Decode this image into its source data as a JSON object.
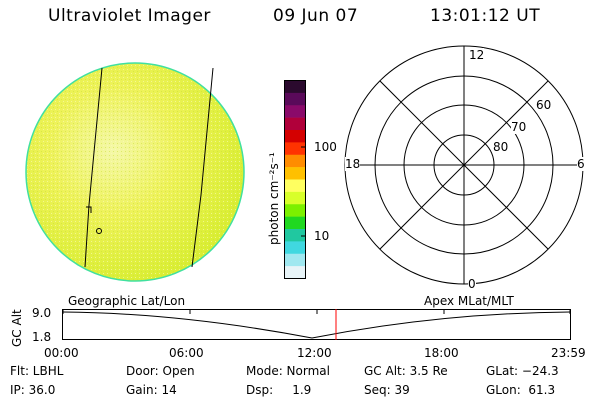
{
  "header": {
    "title": "Ultraviolet Imager",
    "date": "09 Jun 07",
    "time": "13:01:12 UT"
  },
  "colorbar": {
    "unit_label": "photon cm⁻²s⁻¹",
    "tick_100": "100",
    "tick_10": "10",
    "colors": [
      "#2b0a2e",
      "#5a0a5a",
      "#8a0a6a",
      "#b0003a",
      "#d40000",
      "#ff3300",
      "#ff8c00",
      "#ffc000",
      "#ffff60",
      "#d8ff2a",
      "#7cf000",
      "#20d820",
      "#20c8a0",
      "#40d8e0",
      "#a0e8f0",
      "#e8f4f8"
    ]
  },
  "polar_plot": {
    "mlt_12": "12",
    "mlt_18": "18",
    "mlt_6": "6",
    "mlt_0": "0",
    "lat_60": "60",
    "lat_70": "70",
    "lat_80": "80"
  },
  "timeline": {
    "left_label": "Geographic Lat/Lon",
    "right_label": "Apex MLat/MLT",
    "y_axis_label": "GC Alt",
    "y_top": "9.0",
    "y_bottom": "1.8",
    "x_ticks": [
      "00:00",
      "06:00",
      "12:00",
      "18:00",
      "23:59"
    ],
    "current_time_color": "#ff0000"
  },
  "status": {
    "filter": "Flt: LBHL",
    "ip": "IP: 36.0",
    "door": "Door: Open",
    "gain": "Gain: 14",
    "mode": "Mode: Normal",
    "dsp": "Dsp:     1.9",
    "gc_alt": "GC Alt: 3.5 Re",
    "seq": "Seq: 39",
    "glat": "GLat: −24.3",
    "glon": "GLon:  61.3"
  },
  "earth_image": {
    "fill_color": "#e8f040",
    "rim_color": "#40e0a0"
  }
}
